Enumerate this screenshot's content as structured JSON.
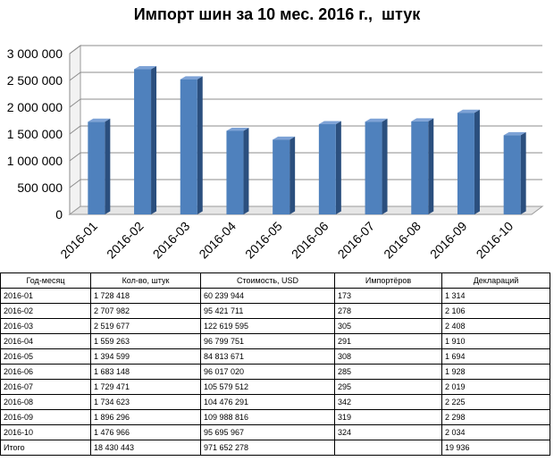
{
  "chart_data": {
    "type": "bar",
    "title": "Импорт шин за 10 мес. 2016 г.,  штук",
    "categories": [
      "2016-01",
      "2016-02",
      "2016-03",
      "2016-04",
      "2016-05",
      "2016-06",
      "2016-07",
      "2016-08",
      "2016-09",
      "2016-10"
    ],
    "values": [
      1728418,
      2707982,
      2519677,
      1559263,
      1394599,
      1683148,
      1729471,
      1734623,
      1896296,
      1476966
    ],
    "ylim": [
      0,
      3000000
    ],
    "yticks": [
      0,
      500000,
      1000000,
      1500000,
      2000000,
      2500000,
      3000000
    ],
    "ytick_labels": [
      "0",
      "500 000",
      "1 000 000",
      "1 500 000",
      "2 000 000",
      "2 500 000",
      "3 000 000"
    ],
    "grid": true,
    "legend": "none",
    "style": "3d-column",
    "bar_color": "#4f81bd"
  },
  "table": {
    "headers": [
      "Год-месяц",
      "Кол-во, штук",
      "Стоимость, USD",
      "Импортёров",
      "Деклараций"
    ],
    "rows": [
      [
        "2016-01",
        "1 728 418",
        "60 239 944",
        "173",
        "1 314"
      ],
      [
        "2016-02",
        "2 707 982",
        "95 421 711",
        "278",
        "2 106"
      ],
      [
        "2016-03",
        "2 519 677",
        "122 619 595",
        "305",
        "2 408"
      ],
      [
        "2016-04",
        "1 559 263",
        "96 799 751",
        "291",
        "1 910"
      ],
      [
        "2016-05",
        "1 394 599",
        "84 813 671",
        "308",
        "1 694"
      ],
      [
        "2016-06",
        "1 683 148",
        "96 017 020",
        "285",
        "1 928"
      ],
      [
        "2016-07",
        "1 729 471",
        "105 579 512",
        "295",
        "2 019"
      ],
      [
        "2016-08",
        "1 734 623",
        "104 476 291",
        "342",
        "2 225"
      ],
      [
        "2016-09",
        "1 896 296",
        "109 988 816",
        "319",
        "2 298"
      ],
      [
        "2016-10",
        "1 476 966",
        "95 695 967",
        "324",
        "2 034"
      ]
    ],
    "total": [
      "Итого",
      "18 430 443",
      "971 652 278",
      "",
      "19 936"
    ]
  }
}
